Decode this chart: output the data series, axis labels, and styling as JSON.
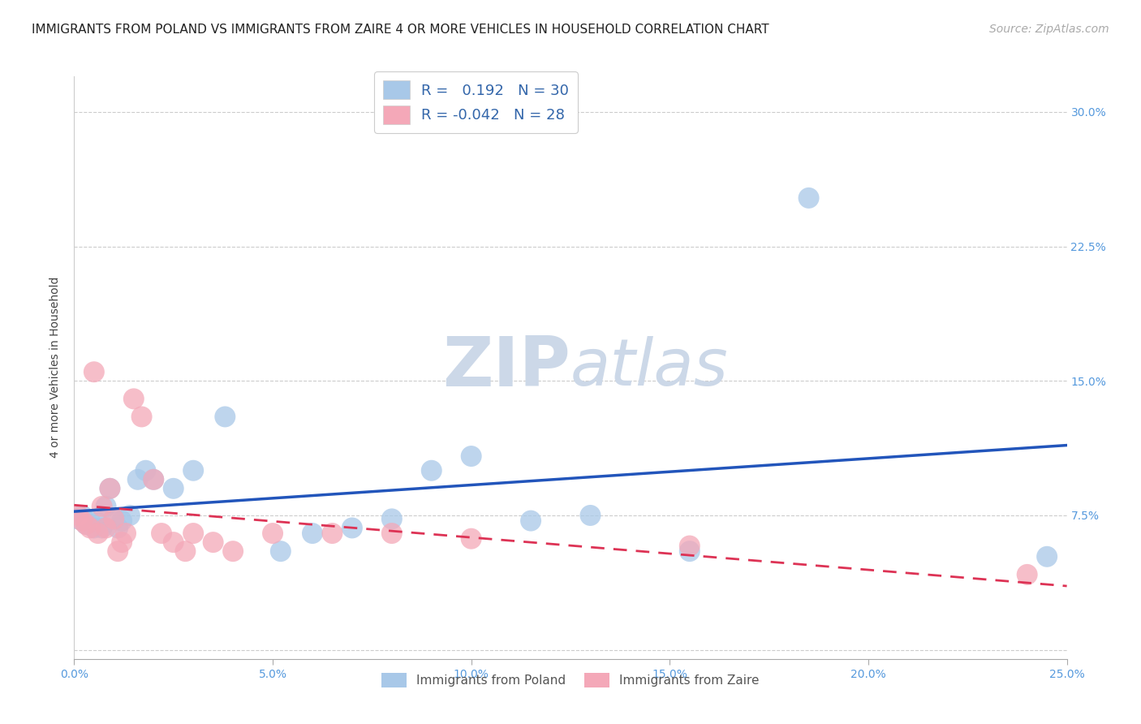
{
  "title": "IMMIGRANTS FROM POLAND VS IMMIGRANTS FROM ZAIRE 4 OR MORE VEHICLES IN HOUSEHOLD CORRELATION CHART",
  "source": "Source: ZipAtlas.com",
  "ylabel": "4 or more Vehicles in Household",
  "xlabel_ticks": [
    "0.0%",
    "5.0%",
    "10.0%",
    "15.0%",
    "20.0%",
    "25.0%"
  ],
  "xlim": [
    0.0,
    0.25
  ],
  "ylim": [
    -0.005,
    0.32
  ],
  "poland_R": 0.192,
  "poland_N": 30,
  "zaire_R": -0.042,
  "zaire_N": 28,
  "poland_color": "#a8c8e8",
  "zaire_color": "#f4a8b8",
  "poland_line_color": "#2255bb",
  "zaire_line_color": "#dd3355",
  "background_color": "#ffffff",
  "grid_color": "#cccccc",
  "poland_x": [
    0.001,
    0.002,
    0.003,
    0.004,
    0.005,
    0.006,
    0.007,
    0.008,
    0.009,
    0.01,
    0.011,
    0.012,
    0.014,
    0.016,
    0.018,
    0.02,
    0.025,
    0.03,
    0.038,
    0.052,
    0.06,
    0.07,
    0.08,
    0.09,
    0.1,
    0.115,
    0.13,
    0.155,
    0.185,
    0.245
  ],
  "poland_y": [
    0.073,
    0.075,
    0.07,
    0.072,
    0.068,
    0.071,
    0.068,
    0.08,
    0.09,
    0.073,
    0.068,
    0.072,
    0.075,
    0.095,
    0.1,
    0.095,
    0.09,
    0.1,
    0.13,
    0.055,
    0.065,
    0.068,
    0.073,
    0.1,
    0.108,
    0.072,
    0.075,
    0.055,
    0.252,
    0.052
  ],
  "zaire_x": [
    0.001,
    0.002,
    0.003,
    0.004,
    0.005,
    0.006,
    0.007,
    0.008,
    0.009,
    0.01,
    0.011,
    0.012,
    0.013,
    0.015,
    0.017,
    0.02,
    0.022,
    0.025,
    0.028,
    0.03,
    0.035,
    0.04,
    0.05,
    0.065,
    0.08,
    0.1,
    0.155,
    0.24
  ],
  "zaire_y": [
    0.075,
    0.072,
    0.07,
    0.068,
    0.155,
    0.065,
    0.08,
    0.068,
    0.09,
    0.073,
    0.055,
    0.06,
    0.065,
    0.14,
    0.13,
    0.095,
    0.065,
    0.06,
    0.055,
    0.065,
    0.06,
    0.055,
    0.065,
    0.065,
    0.065,
    0.062,
    0.058,
    0.042
  ],
  "title_fontsize": 11,
  "label_fontsize": 10,
  "tick_fontsize": 10,
  "legend_fontsize": 13,
  "source_fontsize": 10
}
